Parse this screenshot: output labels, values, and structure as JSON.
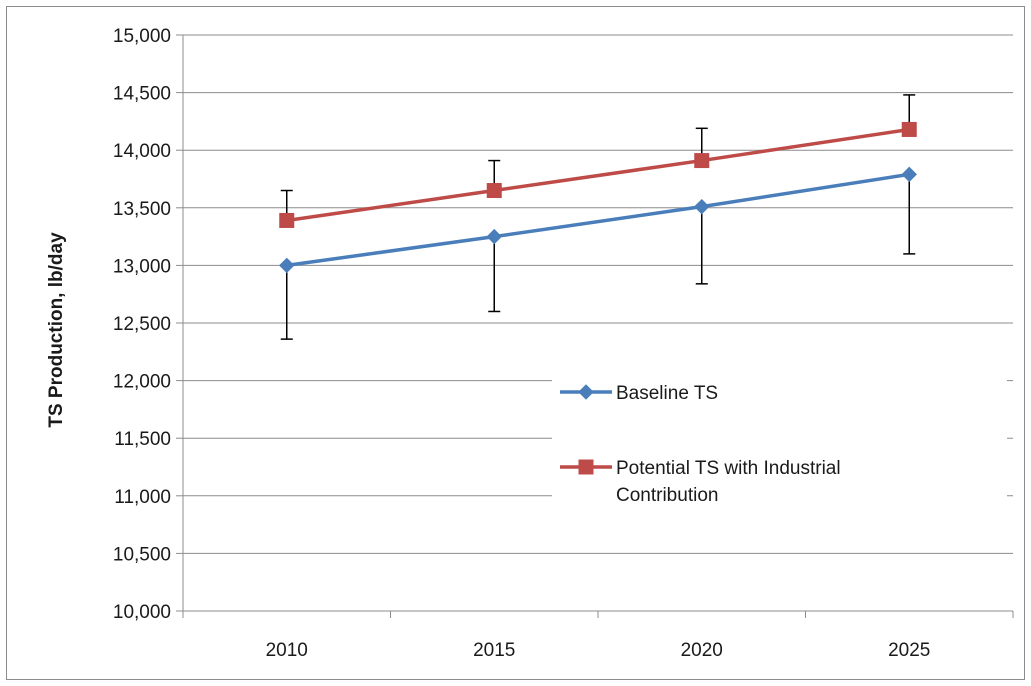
{
  "chart_data": {
    "type": "line",
    "title": "",
    "xlabel": "",
    "ylabel": "TS Production, lb/day",
    "categories": [
      "2010",
      "2015",
      "2020",
      "2025"
    ],
    "ylim": [
      10000,
      15000
    ],
    "yticks": [
      10000,
      10500,
      11000,
      11500,
      12000,
      12500,
      13000,
      13500,
      14000,
      14500,
      15000
    ],
    "ytick_labels": [
      "10,000",
      "10,500",
      "11,000",
      "11,500",
      "12,000",
      "12,500",
      "13,000",
      "13,500",
      "14,000",
      "14,500",
      "15,000"
    ],
    "grid": "horizontal",
    "legend_position": "center-right",
    "series": [
      {
        "name": "Baseline TS",
        "color": "#4a7ebb",
        "marker": "diamond",
        "values": [
          13000,
          13250,
          13510,
          13790
        ],
        "error_low": [
          12360,
          12600,
          12840,
          13100
        ]
      },
      {
        "name": "Potential TS with Industrial Contribution",
        "legend_lines": [
          "Potential TS with Industrial",
          "Contribution"
        ],
        "color": "#be4b48",
        "marker": "square",
        "values": [
          13390,
          13650,
          13910,
          14180
        ],
        "error_high": [
          13650,
          13910,
          14190,
          14480
        ]
      }
    ]
  }
}
